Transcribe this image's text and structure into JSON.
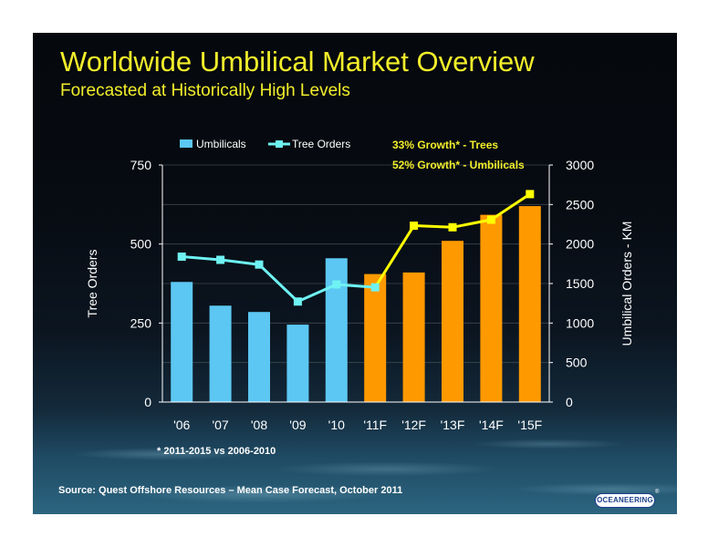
{
  "slide": {
    "title": "Worldwide Umbilical Market Overview",
    "subtitle": "Forecasted at Historically High Levels",
    "footnote": "* 2011-2015 vs 2006-2010",
    "source": "Source:  Quest Offshore Resources – Mean Case Forecast, October 2011",
    "logo_text": "OCEANEERING",
    "logo_mark": "®"
  },
  "chart_data": {
    "type": "bar",
    "categories": [
      "'06",
      "'07",
      "'08",
      "'09",
      "'10",
      "'11F",
      "'12F",
      "'13F",
      "'14F",
      "'15F"
    ],
    "series": [
      {
        "name": "Umbilicals",
        "type": "bar",
        "axis": "right",
        "values": [
          1520,
          1220,
          1140,
          980,
          1820,
          1620,
          1640,
          2040,
          2370,
          2480
        ],
        "bar_colors": [
          "#5cc7f2",
          "#5cc7f2",
          "#5cc7f2",
          "#5cc7f2",
          "#5cc7f2",
          "#ff9900",
          "#ff9900",
          "#ff9900",
          "#ff9900",
          "#ff9900"
        ]
      },
      {
        "name": "Tree Orders",
        "type": "line",
        "axis": "left",
        "values": [
          460,
          450,
          435,
          318,
          372,
          363,
          558,
          553,
          577,
          658
        ],
        "point_colors": [
          "#6ef2f2",
          "#6ef2f2",
          "#6ef2f2",
          "#6ef2f2",
          "#6ef2f2",
          "#6ef2f2",
          "#ffff00",
          "#ffff00",
          "#ffff00",
          "#ffff00"
        ]
      }
    ],
    "ylabel": "Tree Orders",
    "ylabel_right": "Umbilical Orders - KM",
    "ylim": [
      0,
      750
    ],
    "ylim_right": [
      0,
      3000
    ],
    "yticks": [
      "0",
      "250",
      "500",
      "750"
    ],
    "yticks_right": [
      "0",
      "500",
      "1000",
      "1500",
      "2000",
      "2500",
      "3000"
    ],
    "legend": {
      "position": "top-left",
      "items": [
        "Umbilicals",
        "Tree Orders"
      ]
    },
    "annotations": [
      "33% Growth* - Trees",
      "52% Growth* - Umbilicals"
    ],
    "grid": true,
    "colors": {
      "historical_bar": "#5cc7f2",
      "forecast_bar": "#ff9900",
      "historical_line": "#6ef2f2",
      "forecast_line": "#ffff00",
      "annotation": "#f2ee2b",
      "text": "#ffffff"
    }
  }
}
